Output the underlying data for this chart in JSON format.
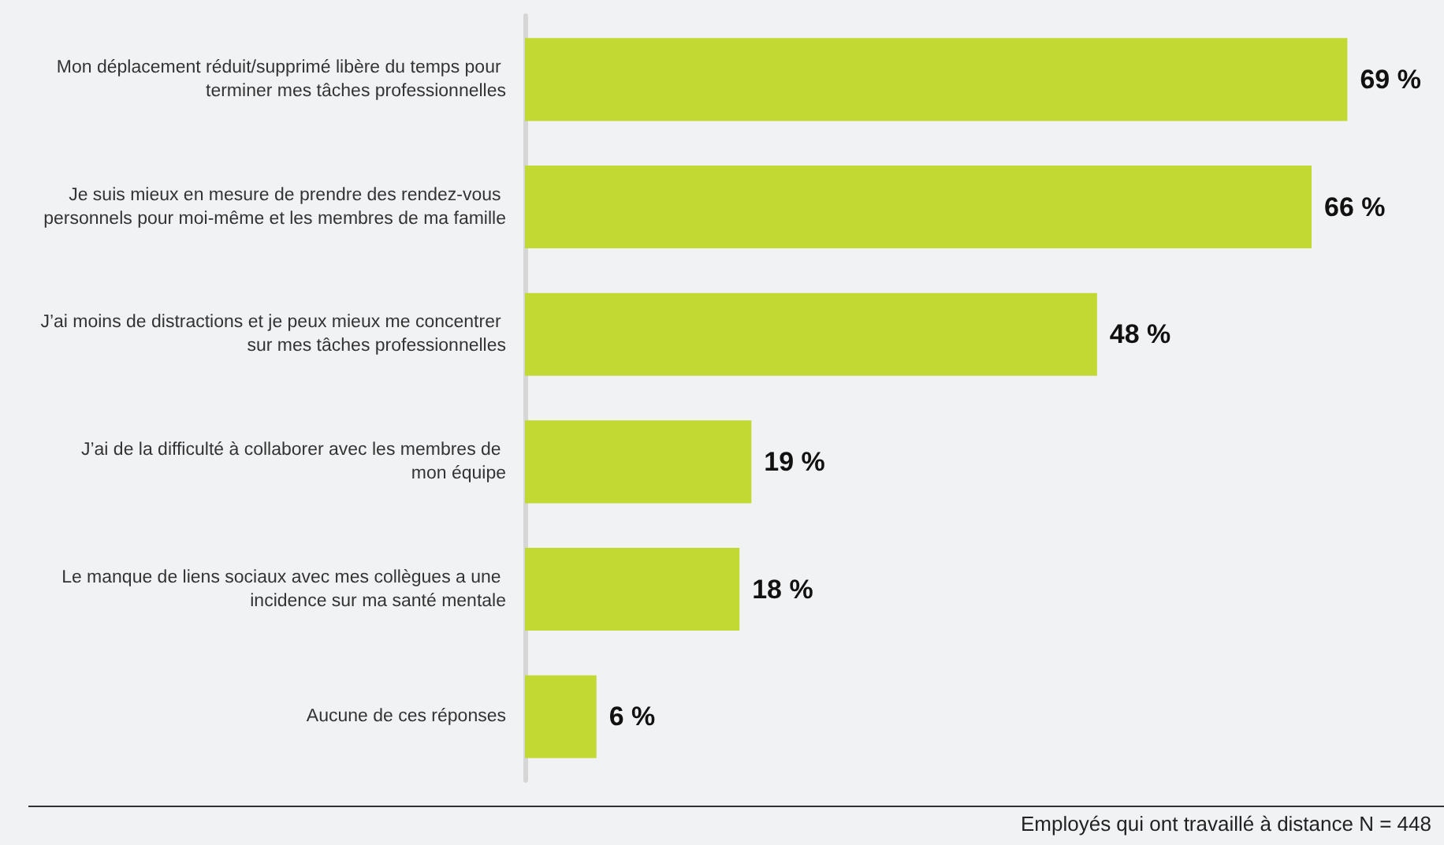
{
  "chart_data": {
    "type": "bar",
    "orientation": "horizontal",
    "categories": [
      "Mon déplacement réduit/supprimé libère du temps pour terminer mes tâches professionnelles",
      "Je suis mieux en mesure de prendre des rendez-vous personnels pour moi-même et les membres de ma famille",
      "J’ai moins de distractions et je peux mieux me concentrer sur mes tâches professionnelles",
      "J’ai de la difficulté à collaborer avec les membres de mon équipe",
      "Le manque de liens sociaux avec mes collègues a une incidence sur ma santé mentale",
      "Aucune de ces réponses"
    ],
    "values": [
      69,
      66,
      48,
      19,
      18,
      6
    ],
    "value_labels": [
      "69 %",
      "66 %",
      "48 %",
      "19 %",
      "18 %",
      "6 %"
    ],
    "color": "#c2d833",
    "annotations": [
      "Employés qui ont travaillé à distance N = 448"
    ]
  }
}
